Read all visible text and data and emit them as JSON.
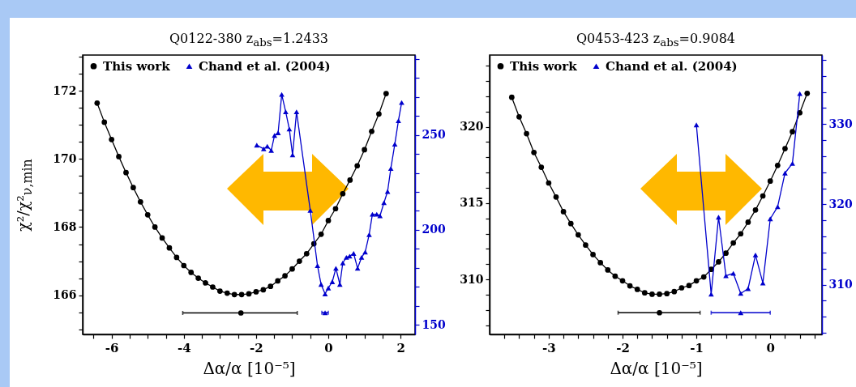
{
  "chart_data": [
    {
      "type": "line",
      "title": "Q0122-380 z$_{abs}$=1.2433",
      "xlabel": "Δα/α [10⁻⁵]",
      "ylabel": "χ²/χ²$_{ν,min}$",
      "legend": "top left",
      "xlim": [
        -6.8,
        2.4
      ],
      "ylim": [
        164.85,
        173.05
      ],
      "y2lim": [
        145,
        292
      ],
      "xticks": [
        {
          "value": -6.5,
          "label": null
        },
        -6,
        {
          "value": -5.5,
          "label": null
        },
        {
          "value": -5,
          "label": null
        },
        {
          "value": -4.5,
          "label": null
        },
        -4,
        {
          "value": -3.5,
          "label": null
        },
        {
          "value": -3,
          "label": null
        },
        {
          "value": -2.5,
          "label": null
        },
        -2,
        {
          "value": -1.5,
          "label": null
        },
        {
          "value": -1,
          "label": null
        },
        {
          "value": -0.5,
          "label": null
        },
        0,
        {
          "value": 0.5,
          "label": null
        },
        {
          "value": 1,
          "label": null
        },
        {
          "value": 1.5,
          "label": null
        },
        2
      ],
      "yticks": [
        {
          "value": 165,
          "label": null
        },
        {
          "value": 165.5,
          "label": null
        },
        166,
        {
          "value": 166.5,
          "label": null
        },
        {
          "value": 167,
          "label": null
        },
        {
          "value": 167.5,
          "label": null
        },
        168,
        {
          "value": 168.5,
          "label": null
        },
        {
          "value": 169,
          "label": null
        },
        {
          "value": 169.5,
          "label": null
        },
        170,
        {
          "value": 170.5,
          "label": null
        },
        {
          "value": 171,
          "label": null
        },
        {
          "value": 171.5,
          "label": null
        },
        172,
        {
          "value": 172.5,
          "label": null
        },
        {
          "value": 173,
          "label": null
        }
      ],
      "y2ticks": [
        150,
        {
          "value": 160,
          "label": null
        },
        {
          "value": 170,
          "label": null
        },
        {
          "value": 180,
          "label": null
        },
        {
          "value": 190,
          "label": null
        },
        200,
        {
          "value": 210,
          "label": null
        },
        {
          "value": 220,
          "label": null
        },
        {
          "value": 230,
          "label": null
        },
        {
          "value": 240,
          "label": null
        },
        250,
        {
          "value": 260,
          "label": null
        },
        {
          "value": 270,
          "label": null
        },
        {
          "value": 280,
          "label": null
        },
        {
          "value": 290,
          "label": null
        }
      ],
      "series": [
        {
          "name": "This work",
          "color": "#000000",
          "marker": "circle",
          "x": [
            -6.4,
            -6.2,
            -6.0,
            -5.8,
            -5.6,
            -5.4,
            -5.2,
            -5.0,
            -4.8,
            -4.6,
            -4.4,
            -4.2,
            -4.0,
            -3.8,
            -3.6,
            -3.4,
            -3.2,
            -3.0,
            -2.8,
            -2.6,
            -2.4,
            -2.2,
            -2.0,
            -1.8,
            -1.6,
            -1.4,
            -1.2,
            -1.0,
            -0.8,
            -0.6,
            -0.4,
            -0.2,
            0,
            0.2,
            0.4,
            0.6,
            0.8,
            1.0,
            1.2,
            1.4,
            1.6
          ],
          "values": [
            171.64,
            171.08,
            170.57,
            170.07,
            169.6,
            169.16,
            168.74,
            168.36,
            168.0,
            167.68,
            167.39,
            167.11,
            166.87,
            166.67,
            166.5,
            166.36,
            166.24,
            166.12,
            166.06,
            166.02,
            166.02,
            166.04,
            166.1,
            166.16,
            166.26,
            166.42,
            166.57,
            166.77,
            167.0,
            167.22,
            167.51,
            167.79,
            168.19,
            168.54,
            168.98,
            169.38,
            169.8,
            170.27,
            170.81,
            171.32,
            171.92
          ]
        },
        {
          "name": "Chand et al. (2004)",
          "color": "#0000cc",
          "marker": "triangle",
          "axis": "y2",
          "x": [
            -1.98,
            -1.79,
            -1.69,
            -1.58,
            -1.49,
            -1.39,
            -1.29,
            -1.18,
            -1.08,
            -0.99,
            -0.88,
            -0.5,
            -0.3,
            -0.2,
            -0.09,
            0.0,
            0.11,
            0.21,
            0.32,
            0.4,
            0.5,
            0.59,
            0.7,
            0.81,
            0.92,
            1.02,
            1.13,
            1.22,
            1.34,
            1.43,
            1.54,
            1.64,
            1.73,
            1.84,
            1.94,
            2.03
          ],
          "values": [
            244.6,
            242.6,
            244.0,
            241.8,
            249.7,
            251.1,
            271.3,
            262.1,
            253.1,
            239.4,
            262.1,
            210.3,
            181.2,
            171.3,
            166.3,
            169.4,
            172.7,
            179.8,
            171.3,
            182.6,
            185.5,
            186.2,
            187.6,
            179.8,
            185.5,
            188.3,
            197.5,
            208.2,
            208.2,
            207.4,
            214.3,
            220.2,
            232.3,
            245.1,
            257.4,
            267.0
          ]
        },
        {
          "type": "scatter",
          "color": "#000000",
          "marker": "circle",
          "x": [
            -2.42
          ],
          "values": [
            165.48
          ],
          "xerrors": [
            [
              -4.03,
              -0.86
            ]
          ]
        },
        {
          "type": "scatter",
          "color": "#0000cc",
          "marker": "triangle",
          "axis": "y2",
          "x": [
            -0.09
          ],
          "values": [
            156.4
          ],
          "xerrors": [
            [
              -0.18,
              0.0
            ]
          ]
        }
      ]
    },
    {
      "type": "line",
      "title": "Q0453-423 z$_{abs}$=0.9084",
      "xlabel": "Δα/α [10⁻⁵]",
      "legend": "top left",
      "xlim": [
        -3.8,
        0.7
      ],
      "ylim": [
        306.4,
        324.7
      ],
      "y2lim": [
        303.8,
        338.6
      ],
      "xticks": [
        {
          "value": -3.6,
          "label": null
        },
        {
          "value": -3.4,
          "label": null
        },
        {
          "value": -3.2,
          "label": null
        },
        -3,
        {
          "value": -2.8,
          "label": null
        },
        {
          "value": -2.6,
          "label": null
        },
        {
          "value": -2.4,
          "label": null
        },
        {
          "value": -2.2,
          "label": null
        },
        -2,
        {
          "value": -1.8,
          "label": null
        },
        {
          "value": -1.6,
          "label": null
        },
        {
          "value": -1.4,
          "label": null
        },
        {
          "value": -1.2,
          "label": null
        },
        -1,
        {
          "value": -0.8,
          "label": null
        },
        {
          "value": -0.6,
          "label": null
        },
        {
          "value": -0.4,
          "label": null
        },
        {
          "value": -0.2,
          "label": null
        },
        0,
        {
          "value": 0.2,
          "label": null
        },
        {
          "value": 0.4,
          "label": null
        },
        {
          "value": 0.6,
          "label": null
        }
      ],
      "yticks": [
        {
          "value": 307,
          "label": null
        },
        {
          "value": 308,
          "label": null
        },
        {
          "value": 309,
          "label": null
        },
        310,
        {
          "value": 311,
          "label": null
        },
        {
          "value": 312,
          "label": null
        },
        {
          "value": 313,
          "label": null
        },
        {
          "value": 314,
          "label": null
        },
        315,
        {
          "value": 316,
          "label": null
        },
        {
          "value": 317,
          "label": null
        },
        {
          "value": 318,
          "label": null
        },
        {
          "value": 319,
          "label": null
        },
        320,
        {
          "value": 321,
          "label": null
        },
        {
          "value": 322,
          "label": null
        },
        {
          "value": 323,
          "label": null
        },
        {
          "value": 324,
          "label": null
        }
      ],
      "y2ticks": [
        {
          "value": 304,
          "label": null
        },
        {
          "value": 306,
          "label": null
        },
        {
          "value": 308,
          "label": null
        },
        310,
        {
          "value": 312,
          "label": null
        },
        {
          "value": 314,
          "label": null
        },
        {
          "value": 316,
          "label": null
        },
        {
          "value": 318,
          "label": null
        },
        320,
        {
          "value": 322,
          "label": null
        },
        {
          "value": 324,
          "label": null
        },
        {
          "value": 326,
          "label": null
        },
        {
          "value": 328,
          "label": null
        },
        330,
        {
          "value": 332,
          "label": null
        },
        {
          "value": 334,
          "label": null
        },
        {
          "value": 336,
          "label": null
        },
        {
          "value": 338,
          "label": null
        }
      ],
      "series": [
        {
          "name": "This work",
          "color": "#000000",
          "marker": "circle",
          "x": [
            -3.5,
            -3.4,
            -3.3,
            -3.2,
            -3.1,
            -3.0,
            -2.9,
            -2.8,
            -2.7,
            -2.6,
            -2.5,
            -2.4,
            -2.3,
            -2.2,
            -2.1,
            -2.0,
            -1.9,
            -1.8,
            -1.7,
            -1.6,
            -1.5,
            -1.4,
            -1.3,
            -1.2,
            -1.1,
            -1.0,
            -0.9,
            -0.8,
            -0.7,
            -0.6,
            -0.5,
            -0.4,
            -0.3,
            -0.2,
            -0.1,
            0,
            0.1,
            0.2,
            0.3,
            0.4,
            0.5
          ],
          "values": [
            321.93,
            320.65,
            319.55,
            318.32,
            317.35,
            316.32,
            315.4,
            314.44,
            313.66,
            312.92,
            312.25,
            311.63,
            311.1,
            310.62,
            310.21,
            309.91,
            309.58,
            309.35,
            309.12,
            309.03,
            309.03,
            309.07,
            309.2,
            309.45,
            309.6,
            309.91,
            310.16,
            310.66,
            311.15,
            311.72,
            312.39,
            312.99,
            313.75,
            314.55,
            315.47,
            316.44,
            317.47,
            318.57,
            319.68,
            320.92,
            322.19
          ]
        },
        {
          "name": "Chand et al. (2004)",
          "color": "#0000cc",
          "marker": "triangle",
          "axis": "y2",
          "x": [
            -1.0,
            -0.8,
            -0.7,
            -0.6,
            -0.5,
            -0.4,
            -0.3,
            -0.2,
            -0.1,
            0.0,
            0.1,
            0.2,
            0.3,
            0.4
          ],
          "values": [
            329.9,
            308.8,
            318.4,
            311.1,
            311.4,
            308.9,
            309.5,
            313.7,
            310.2,
            318.2,
            319.7,
            323.9,
            325.1,
            333.8
          ]
        },
        {
          "type": "scatter",
          "color": "#000000",
          "marker": "circle",
          "x": [
            -1.5
          ],
          "values": [
            307.82
          ],
          "xerrors": [
            [
              -2.06,
              -0.95
            ]
          ]
        },
        {
          "type": "scatter",
          "color": "#0000cc",
          "marker": "triangle",
          "axis": "y2",
          "x": [
            -0.4
          ],
          "values": [
            306.5
          ],
          "xerrors": [
            [
              -0.8,
              0.0
            ]
          ]
        }
      ]
    }
  ]
}
